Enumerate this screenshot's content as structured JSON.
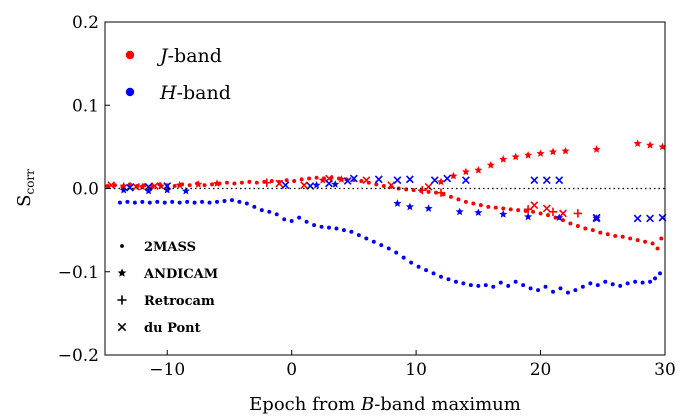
{
  "chart_data": {
    "type": "scatter",
    "xlabel": {
      "prefix": "Epoch from ",
      "italic": "B",
      "suffix": "-band maximum"
    },
    "ylabel": {
      "main": "S",
      "sub": "corr"
    },
    "xlim": [
      -15,
      30
    ],
    "ylim": [
      -0.2,
      0.2
    ],
    "xticks": [
      -10,
      0,
      10,
      20,
      30
    ],
    "xtick_labels": [
      "−10",
      "0",
      "10",
      "20",
      "30"
    ],
    "yticks": [
      -0.2,
      -0.1,
      0.0,
      0.1,
      0.2
    ],
    "ytick_labels": [
      "−0.2",
      "−0.1",
      "0.0",
      "0.1",
      "0.2"
    ],
    "zero_line": {
      "y": 0.0,
      "style": "dotted"
    },
    "grid": false,
    "legend_bands": {
      "placement": "top-left",
      "entries": [
        {
          "band": "J",
          "italic": "J",
          "suffix": "-band",
          "color": "#ff0000"
        },
        {
          "band": "H",
          "italic": "H",
          "suffix": "-band",
          "color": "#0000ff"
        }
      ]
    },
    "legend_instruments": {
      "placement": "bottom-left",
      "entries": [
        {
          "label": "2MASS",
          "marker": "circle"
        },
        {
          "label": "ANDICAM",
          "marker": "star"
        },
        {
          "label": "Retrocam",
          "marker": "plus"
        },
        {
          "label": "du Pont",
          "marker": "x"
        }
      ]
    },
    "series": [
      {
        "band": "J",
        "instrument": "2MASS",
        "color": "#ff0000",
        "marker": "circle",
        "points": [
          [
            -14.8,
            0.003
          ],
          [
            -14.2,
            0.004
          ],
          [
            -13.6,
            0.002
          ],
          [
            -13.0,
            0.005
          ],
          [
            -12.4,
            0.003
          ],
          [
            -11.8,
            0.004
          ],
          [
            -11.2,
            0.002
          ],
          [
            -10.6,
            0.005
          ],
          [
            -10.0,
            0.004
          ],
          [
            -9.4,
            0.003
          ],
          [
            -8.8,
            0.005
          ],
          [
            -8.2,
            0.004
          ],
          [
            -7.6,
            0.006
          ],
          [
            -7.0,
            0.004
          ],
          [
            -6.4,
            0.005
          ],
          [
            -5.8,
            0.006
          ],
          [
            -5.2,
            0.007
          ],
          [
            -4.6,
            0.006
          ],
          [
            -4.0,
            0.007
          ],
          [
            -3.4,
            0.008
          ],
          [
            -2.8,
            0.007
          ],
          [
            -2.2,
            0.008
          ],
          [
            -1.6,
            0.009
          ],
          [
            -1.0,
            0.008
          ],
          [
            -0.4,
            0.01
          ],
          [
            0.2,
            0.009
          ],
          [
            0.8,
            0.011
          ],
          [
            1.4,
            0.012
          ],
          [
            2.0,
            0.013
          ],
          [
            2.6,
            0.012
          ],
          [
            3.2,
            0.013
          ],
          [
            3.8,
            0.012
          ],
          [
            4.4,
            0.011
          ],
          [
            5.0,
            0.01
          ],
          [
            5.6,
            0.009
          ],
          [
            6.2,
            0.007
          ],
          [
            6.8,
            0.005
          ],
          [
            7.4,
            0.003
          ],
          [
            8.0,
            0.002
          ],
          [
            8.6,
            0.0
          ],
          [
            9.2,
            -0.001
          ],
          [
            9.8,
            -0.002
          ],
          [
            10.4,
            -0.003
          ],
          [
            11.0,
            -0.004
          ],
          [
            11.6,
            -0.005
          ],
          [
            12.2,
            -0.007
          ],
          [
            12.8,
            -0.01
          ],
          [
            13.4,
            -0.013
          ],
          [
            14.0,
            -0.016
          ],
          [
            14.6,
            -0.018
          ],
          [
            15.2,
            -0.02
          ],
          [
            15.8,
            -0.022
          ],
          [
            16.4,
            -0.023
          ],
          [
            17.0,
            -0.024
          ],
          [
            17.6,
            -0.025
          ],
          [
            18.2,
            -0.026
          ],
          [
            18.8,
            -0.027
          ],
          [
            19.4,
            -0.028
          ],
          [
            20.0,
            -0.03
          ],
          [
            20.6,
            -0.032
          ],
          [
            21.2,
            -0.035
          ],
          [
            21.8,
            -0.038
          ],
          [
            22.4,
            -0.042
          ],
          [
            23.0,
            -0.045
          ],
          [
            23.6,
            -0.048
          ],
          [
            24.2,
            -0.05
          ],
          [
            24.8,
            -0.053
          ],
          [
            25.4,
            -0.055
          ],
          [
            26.0,
            -0.057
          ],
          [
            26.6,
            -0.058
          ],
          [
            27.2,
            -0.06
          ],
          [
            27.8,
            -0.062
          ],
          [
            28.4,
            -0.064
          ],
          [
            29.0,
            -0.066
          ],
          [
            29.4,
            -0.072
          ],
          [
            29.7,
            -0.06
          ]
        ]
      },
      {
        "band": "J",
        "instrument": "ANDICAM",
        "color": "#ff0000",
        "marker": "star",
        "points": [
          [
            -13.5,
            0.003
          ],
          [
            -12.0,
            0.002
          ],
          [
            -10.5,
            0.003
          ],
          [
            -9.0,
            0.004
          ],
          [
            -7.5,
            0.005
          ],
          [
            -6.0,
            0.006
          ],
          [
            2.5,
            0.01
          ],
          [
            4.0,
            0.011
          ],
          [
            12.0,
            0.008
          ],
          [
            13.0,
            0.015
          ],
          [
            14.0,
            0.02
          ],
          [
            15.0,
            0.022
          ],
          [
            16.0,
            0.028
          ],
          [
            17.0,
            0.035
          ],
          [
            18.0,
            0.038
          ],
          [
            19.0,
            0.04
          ],
          [
            20.0,
            0.042
          ],
          [
            21.0,
            0.044
          ],
          [
            22.0,
            0.045
          ],
          [
            24.5,
            0.047
          ],
          [
            27.8,
            0.054
          ],
          [
            28.8,
            0.052
          ],
          [
            29.8,
            0.05
          ]
        ]
      },
      {
        "band": "J",
        "instrument": "Retrocam",
        "color": "#ff0000",
        "marker": "plus",
        "points": [
          [
            -2.0,
            0.007
          ],
          [
            10.5,
            -0.002
          ],
          [
            12.0,
            -0.005
          ],
          [
            19.0,
            -0.025
          ],
          [
            21.0,
            -0.028
          ],
          [
            23.0,
            -0.03
          ]
        ]
      },
      {
        "band": "J",
        "instrument": "du Pont",
        "color": "#ff0000",
        "marker": "x",
        "points": [
          [
            -14.5,
            0.004
          ],
          [
            -12.5,
            0.002
          ],
          [
            -11.0,
            0.003
          ],
          [
            -1.0,
            0.006
          ],
          [
            1.0,
            0.004
          ],
          [
            3.0,
            0.012
          ],
          [
            6.0,
            0.01
          ],
          [
            8.0,
            0.004
          ],
          [
            11.0,
            0.002
          ],
          [
            19.5,
            -0.02
          ],
          [
            20.5,
            -0.024
          ],
          [
            21.8,
            -0.03
          ],
          [
            24.5,
            -0.036
          ]
        ]
      },
      {
        "band": "H",
        "instrument": "2MASS",
        "color": "#0000ff",
        "marker": "circle",
        "points": [
          [
            -13.8,
            -0.017
          ],
          [
            -13.2,
            -0.016
          ],
          [
            -12.6,
            -0.017
          ],
          [
            -12.0,
            -0.016
          ],
          [
            -11.4,
            -0.017
          ],
          [
            -10.8,
            -0.016
          ],
          [
            -10.2,
            -0.017
          ],
          [
            -9.6,
            -0.016
          ],
          [
            -9.0,
            -0.017
          ],
          [
            -8.4,
            -0.016
          ],
          [
            -7.8,
            -0.017
          ],
          [
            -7.2,
            -0.016
          ],
          [
            -6.6,
            -0.017
          ],
          [
            -6.0,
            -0.016
          ],
          [
            -5.4,
            -0.015
          ],
          [
            -4.8,
            -0.014
          ],
          [
            -4.2,
            -0.016
          ],
          [
            -3.6,
            -0.018
          ],
          [
            -3.0,
            -0.022
          ],
          [
            -2.4,
            -0.026
          ],
          [
            -1.8,
            -0.028
          ],
          [
            -1.2,
            -0.031
          ],
          [
            -0.6,
            -0.037
          ],
          [
            0.0,
            -0.039
          ],
          [
            0.6,
            -0.035
          ],
          [
            1.2,
            -0.04
          ],
          [
            1.8,
            -0.044
          ],
          [
            2.4,
            -0.046
          ],
          [
            3.0,
            -0.047
          ],
          [
            3.6,
            -0.048
          ],
          [
            4.2,
            -0.05
          ],
          [
            4.8,
            -0.052
          ],
          [
            5.4,
            -0.056
          ],
          [
            6.0,
            -0.06
          ],
          [
            6.6,
            -0.064
          ],
          [
            7.2,
            -0.068
          ],
          [
            7.8,
            -0.072
          ],
          [
            8.4,
            -0.077
          ],
          [
            9.0,
            -0.083
          ],
          [
            9.6,
            -0.089
          ],
          [
            10.2,
            -0.094
          ],
          [
            10.8,
            -0.098
          ],
          [
            11.4,
            -0.102
          ],
          [
            12.0,
            -0.106
          ],
          [
            12.6,
            -0.109
          ],
          [
            13.2,
            -0.112
          ],
          [
            13.8,
            -0.114
          ],
          [
            14.4,
            -0.116
          ],
          [
            15.0,
            -0.117
          ],
          [
            15.6,
            -0.116
          ],
          [
            16.2,
            -0.118
          ],
          [
            16.8,
            -0.113
          ],
          [
            17.4,
            -0.117
          ],
          [
            18.0,
            -0.112
          ],
          [
            18.6,
            -0.116
          ],
          [
            19.2,
            -0.12
          ],
          [
            19.8,
            -0.122
          ],
          [
            20.4,
            -0.118
          ],
          [
            21.0,
            -0.124
          ],
          [
            21.6,
            -0.12
          ],
          [
            22.2,
            -0.125
          ],
          [
            22.8,
            -0.122
          ],
          [
            23.4,
            -0.118
          ],
          [
            24.0,
            -0.114
          ],
          [
            24.6,
            -0.116
          ],
          [
            25.2,
            -0.112
          ],
          [
            25.8,
            -0.115
          ],
          [
            26.4,
            -0.117
          ],
          [
            27.0,
            -0.114
          ],
          [
            27.6,
            -0.112
          ],
          [
            28.2,
            -0.113
          ],
          [
            28.8,
            -0.112
          ],
          [
            29.2,
            -0.108
          ],
          [
            29.6,
            -0.102
          ]
        ]
      },
      {
        "band": "H",
        "instrument": "ANDICAM",
        "color": "#0000ff",
        "marker": "star",
        "points": [
          [
            -13.5,
            -0.002
          ],
          [
            -11.5,
            -0.003
          ],
          [
            -10.0,
            -0.002
          ],
          [
            -8.5,
            -0.003
          ],
          [
            2.0,
            0.004
          ],
          [
            3.5,
            0.005
          ],
          [
            8.5,
            -0.018
          ],
          [
            9.5,
            -0.022
          ],
          [
            11.0,
            -0.024
          ],
          [
            13.5,
            -0.028
          ],
          [
            15.0,
            -0.029
          ],
          [
            17.0,
            -0.031
          ],
          [
            19.0,
            -0.034
          ],
          [
            21.5,
            -0.035
          ],
          [
            24.5,
            -0.036
          ]
        ]
      },
      {
        "band": "H",
        "instrument": "du Pont",
        "color": "#0000ff",
        "marker": "x",
        "points": [
          [
            -13.0,
            0.001
          ],
          [
            -11.5,
            0.002
          ],
          [
            -10.0,
            0.003
          ],
          [
            -0.5,
            0.004
          ],
          [
            1.5,
            0.003
          ],
          [
            3.0,
            0.006
          ],
          [
            4.5,
            0.009
          ],
          [
            5.0,
            0.012
          ],
          [
            7.0,
            0.011
          ],
          [
            8.5,
            0.01
          ],
          [
            9.5,
            0.011
          ],
          [
            11.5,
            0.01
          ],
          [
            12.5,
            0.012
          ],
          [
            14.0,
            0.01
          ],
          [
            19.5,
            0.01
          ],
          [
            20.5,
            0.01
          ],
          [
            21.5,
            0.01
          ],
          [
            24.5,
            -0.035
          ],
          [
            27.8,
            -0.036
          ],
          [
            28.8,
            -0.036
          ],
          [
            29.8,
            -0.035
          ]
        ]
      }
    ]
  }
}
